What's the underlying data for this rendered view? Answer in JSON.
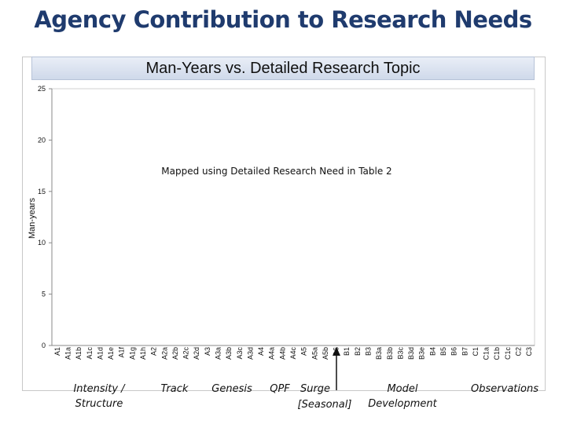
{
  "slide": {
    "title": "Agency Contribution to Research Needs"
  },
  "chart_data": {
    "type": "bar",
    "title": "Man-Years vs. Detailed Research Topic",
    "xlabel": "",
    "ylabel": "Man-years",
    "ylim": [
      0,
      25
    ],
    "yticks": [
      0,
      5,
      10,
      15,
      20,
      25
    ],
    "grid": false,
    "annotation": "Mapped using Detailed Research Need in Table 2",
    "categories": [
      "A1",
      "A1a",
      "A1b",
      "A1c",
      "A1d",
      "A1e",
      "A1f",
      "A1g",
      "A1h",
      "A2",
      "A2a",
      "A2b",
      "A2c",
      "A2d",
      "A3",
      "A3a",
      "A3b",
      "A3c",
      "A3d",
      "A4",
      "A4a",
      "A4b",
      "A4c",
      "A5",
      "A5a",
      "A5b",
      "A6",
      "B1",
      "B2",
      "B3",
      "B3a",
      "B3b",
      "B3c",
      "B3d",
      "B3e",
      "B4",
      "B5",
      "B6",
      "B7",
      "C1",
      "C1a",
      "C1b",
      "C1c",
      "C2",
      "C3"
    ],
    "values": [
      0,
      0,
      0,
      0,
      0,
      0,
      0,
      0,
      0,
      0,
      0,
      0,
      0,
      0,
      0,
      0,
      0,
      0,
      0,
      0,
      0,
      0,
      0,
      0,
      0,
      0,
      0,
      0,
      0,
      0,
      0,
      0,
      0,
      0,
      0,
      0,
      0,
      0,
      0,
      0,
      0,
      0,
      0,
      0,
      0
    ]
  },
  "groups": [
    {
      "id": "intensity",
      "lines": [
        "Intensity /",
        "Structure"
      ]
    },
    {
      "id": "track",
      "lines": [
        "Track"
      ]
    },
    {
      "id": "genesis",
      "lines": [
        "Genesis"
      ]
    },
    {
      "id": "qpf",
      "lines": [
        "QPF"
      ]
    },
    {
      "id": "surge",
      "lines": [
        "Surge",
        "[Seasonal]"
      ]
    },
    {
      "id": "model",
      "lines": [
        "Model",
        "Development"
      ]
    },
    {
      "id": "observations",
      "lines": [
        "Observations"
      ]
    }
  ]
}
